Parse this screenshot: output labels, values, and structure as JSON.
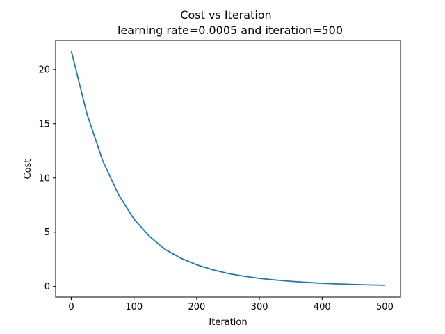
{
  "chart_data": {
    "type": "line",
    "title": "Cost vs Iteration",
    "subtitle": "learning rate=0.0005 and iteration=500",
    "xlabel": "Iteration",
    "ylabel": "Cost",
    "xlim": [
      -25,
      525
    ],
    "ylim": [
      -0.98,
      22.68
    ],
    "xticks": [
      0,
      100,
      200,
      300,
      400,
      500
    ],
    "yticks": [
      0,
      5,
      10,
      15,
      20
    ],
    "grid": false,
    "legend": "none",
    "series": [
      {
        "color": "#1f77b4",
        "x": [
          0,
          25,
          50,
          75,
          100,
          125,
          150,
          175,
          200,
          225,
          250,
          275,
          300,
          325,
          350,
          375,
          400,
          425,
          450,
          475,
          500
        ],
        "y": [
          21.7,
          15.9,
          11.6,
          8.5,
          6.2,
          4.6,
          3.4,
          2.6,
          2.0,
          1.55,
          1.2,
          0.95,
          0.75,
          0.6,
          0.48,
          0.38,
          0.3,
          0.24,
          0.19,
          0.15,
          0.12
        ]
      }
    ]
  }
}
